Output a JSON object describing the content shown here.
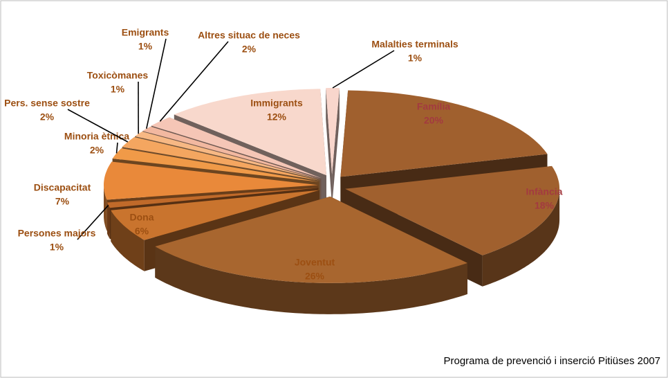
{
  "chart_data": {
    "type": "pie3d",
    "title": "Programa de prevenció i inserció Pitiüses 2007",
    "categories": [
      "Família",
      "Infància",
      "Joventut",
      "Dona",
      "Persones majors",
      "Discapacitat",
      "Minoria ètnica",
      "Pers. sense sostre",
      "Toxicòmanes",
      "Emigrants",
      "Altres situac de neces",
      "Immigrants",
      "Malalties terminals"
    ],
    "values": [
      20,
      18,
      26,
      6,
      1,
      7,
      2,
      2,
      1,
      1,
      2,
      12,
      1
    ],
    "value_labels": [
      "20%",
      "18%",
      "26%",
      "6%",
      "1%",
      "7%",
      "2%",
      "2%",
      "1%",
      "1%",
      "2%",
      "12%",
      "1%"
    ],
    "colors": [
      "#a0602e",
      "#a0602e",
      "#a8662f",
      "#c9742e",
      "#c06a2a",
      "#e9893a",
      "#f09a48",
      "#f4a660",
      "#f7b884",
      "#f2b8a0",
      "#f5c6b6",
      "#f8d8cc",
      "#f9d6cc"
    ]
  }
}
